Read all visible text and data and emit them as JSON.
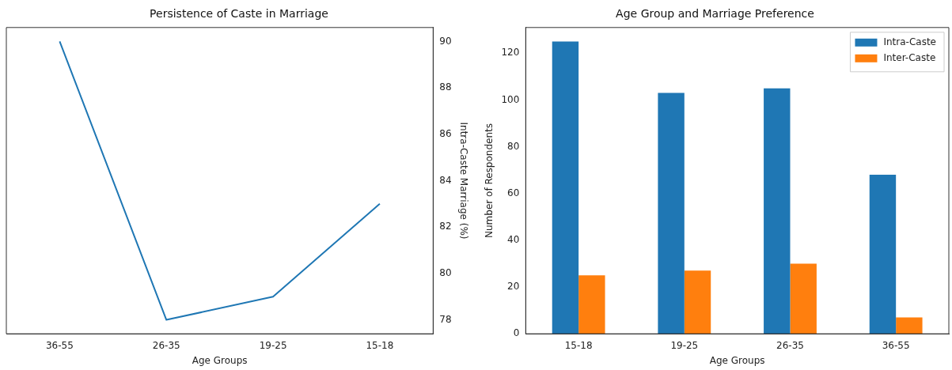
{
  "chart_data": [
    {
      "type": "line",
      "title": "Persistence of Caste in Marriage",
      "xlabel": "Age Groups",
      "y2label": "Intra-Caste Marriage (%)",
      "categories": [
        "36-55",
        "26-35",
        "19-25",
        "15-18"
      ],
      "series": [
        {
          "color": "#1f77b4",
          "values": [
            90,
            78,
            79,
            83
          ],
          "axis": "y2"
        }
      ],
      "y2lim": [
        77.4,
        90.6
      ],
      "y2ticks": [
        78,
        80,
        82,
        84,
        86,
        88,
        90
      ],
      "grid": false,
      "legend": false,
      "marker": "none",
      "line_style": "solid"
    },
    {
      "type": "bar",
      "title": "Age Group and Marriage Preference",
      "xlabel": "Age Groups",
      "ylabel": "Number of Respondents",
      "categories": [
        "15-18",
        "19-25",
        "26-35",
        "36-55"
      ],
      "series": [
        {
          "name": "Intra-Caste",
          "color": "#1f77b4",
          "values": [
            125,
            103,
            105,
            68
          ]
        },
        {
          "name": "Inter-Caste",
          "color": "#ff7f0e",
          "values": [
            25,
            27,
            30,
            7
          ]
        }
      ],
      "ylim": [
        0,
        131
      ],
      "yticks": [
        0,
        20,
        40,
        60,
        80,
        100,
        120
      ],
      "grid": false,
      "legend": "top right"
    }
  ]
}
